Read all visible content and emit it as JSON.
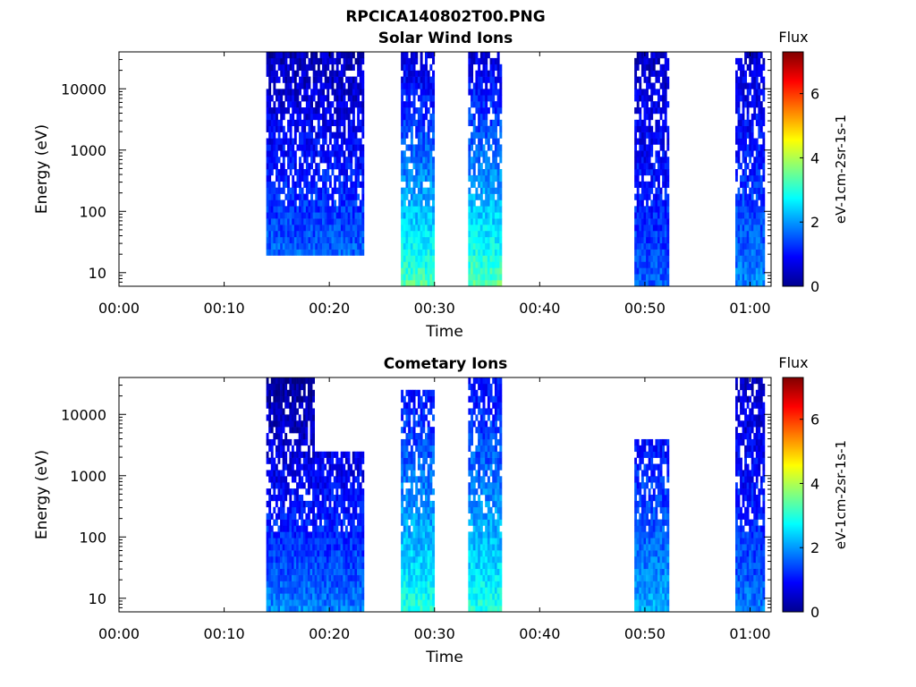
{
  "figure": {
    "title": "RPCICA140802T00.PNG"
  },
  "chart_data": [
    {
      "type": "heatmap",
      "title": "Solar Wind Ions",
      "xlabel": "Time",
      "ylabel": "Energy (eV)",
      "x_ticks": [
        "00:00",
        "00:10",
        "00:20",
        "00:30",
        "00:40",
        "00:50",
        "01:00"
      ],
      "x_tick_minutes": [
        0,
        10,
        20,
        30,
        40,
        50,
        60
      ],
      "xlim_minutes": [
        0,
        62
      ],
      "y_scale": "log",
      "ylim": [
        6,
        40000
      ],
      "y_ticks": [
        "10",
        "100",
        "1000",
        "10000"
      ],
      "y_tick_values": [
        10,
        100,
        1000,
        10000
      ],
      "colorbar": {
        "label": "Flux",
        "unit": "eV-1cm-2sr-1s-1",
        "ticks": [
          "0",
          "2",
          "4",
          "6"
        ],
        "range": [
          0,
          7.3
        ]
      },
      "observation_windows": [
        {
          "start": 14.0,
          "end": 23.3,
          "flux_high_e": 0.4,
          "flux_low_e": 1.9,
          "top_ev": 40000,
          "bottom_ev": 16
        },
        {
          "start": 26.8,
          "end": 30.0,
          "flux_high_e": 0.7,
          "flux_low_e": 3.3,
          "top_ev": 40000,
          "bottom_ev": 6
        },
        {
          "start": 33.2,
          "end": 36.4,
          "flux_high_e": 0.7,
          "flux_low_e": 3.4,
          "top_ev": 40000,
          "bottom_ev": 6
        },
        {
          "start": 49.0,
          "end": 52.3,
          "flux_high_e": 0.5,
          "flux_low_e": 1.6,
          "top_ev": 40000,
          "bottom_ev": 6
        },
        {
          "start": 58.6,
          "end": 61.4,
          "flux_high_e": 0.6,
          "flux_low_e": 1.9,
          "top_ev": 40000,
          "bottom_ev": 6
        }
      ]
    },
    {
      "type": "heatmap",
      "title": "Cometary Ions",
      "xlabel": "Time",
      "ylabel": "Energy (eV)",
      "x_ticks": [
        "00:00",
        "00:10",
        "00:20",
        "00:30",
        "00:40",
        "00:50",
        "01:00"
      ],
      "x_tick_minutes": [
        0,
        10,
        20,
        30,
        40,
        50,
        60
      ],
      "xlim_minutes": [
        0,
        62
      ],
      "y_scale": "log",
      "ylim": [
        6,
        40000
      ],
      "y_ticks": [
        "10",
        "100",
        "1000",
        "10000"
      ],
      "y_tick_values": [
        10,
        100,
        1000,
        10000
      ],
      "colorbar": {
        "label": "Flux",
        "unit": "eV-1cm-2sr-1s-1",
        "ticks": [
          "0",
          "2",
          "4",
          "6"
        ],
        "range": [
          0,
          7.3
        ]
      },
      "observation_windows": [
        {
          "start": 14.0,
          "end": 18.6,
          "flux_high_e": 0.2,
          "flux_low_e": 1.9,
          "top_ev": 40000,
          "bottom_ev": 6
        },
        {
          "start": 18.6,
          "end": 23.3,
          "flux_high_e": 0.3,
          "flux_low_e": 1.8,
          "top_ev": 2900,
          "bottom_ev": 6
        },
        {
          "start": 26.8,
          "end": 30.0,
          "flux_high_e": 1.0,
          "flux_low_e": 3.0,
          "top_ev": 30000,
          "bottom_ev": 6
        },
        {
          "start": 33.2,
          "end": 36.4,
          "flux_high_e": 1.0,
          "flux_low_e": 3.0,
          "top_ev": 40000,
          "bottom_ev": 6
        },
        {
          "start": 49.0,
          "end": 52.3,
          "flux_high_e": 0.7,
          "flux_low_e": 2.2,
          "top_ev": 4000,
          "bottom_ev": 6
        },
        {
          "start": 58.6,
          "end": 61.4,
          "flux_high_e": 0.5,
          "flux_low_e": 1.8,
          "top_ev": 40000,
          "bottom_ev": 6
        }
      ]
    }
  ]
}
